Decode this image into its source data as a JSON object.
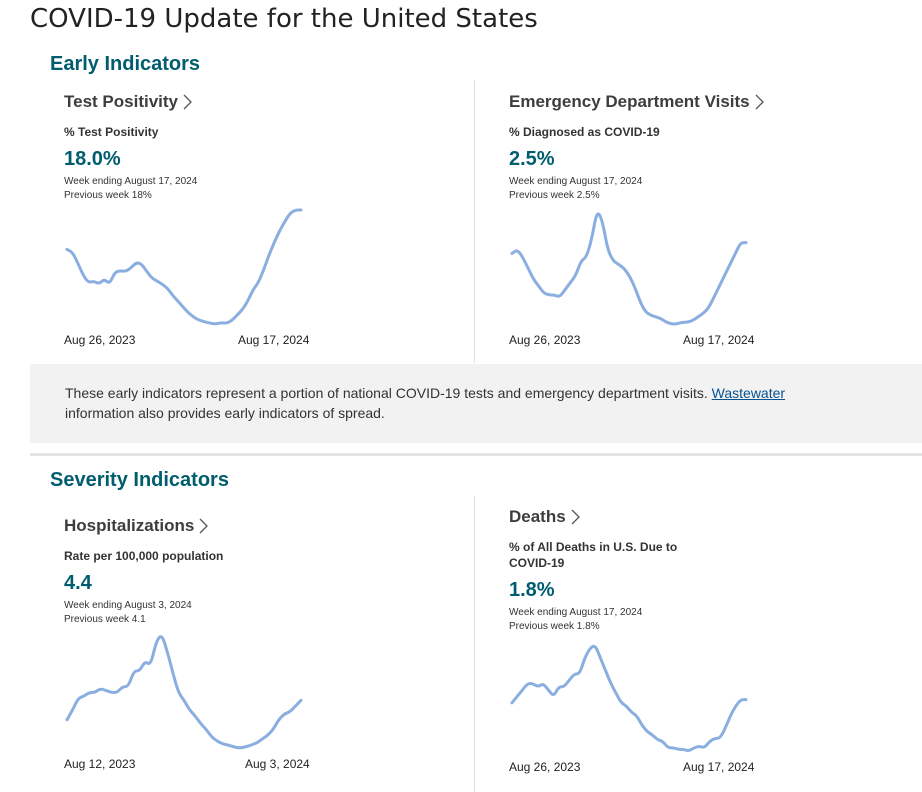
{
  "page": {
    "title": "COVID-19 Update for the United States"
  },
  "sections": {
    "early": {
      "title": "Early Indicators"
    },
    "severity": {
      "title": "Severity Indicators"
    }
  },
  "note": {
    "text_before": "These early indicators represent a portion of national COVID-19 tests and emergency department visits. ",
    "link_text": "Wastewater",
    "text_after": "information also provides early indicators of spread."
  },
  "cards": {
    "test_positivity": {
      "title": "Test Positivity",
      "metric_label": "% Test Positivity",
      "value": "18.0%",
      "week_ending": "Week ending August 17, 2024",
      "previous_week": "Previous week 18%"
    },
    "ed_visits": {
      "title": "Emergency Department Visits",
      "metric_label": "% Diagnosed as COVID-19",
      "value": "2.5%",
      "week_ending": "Week ending August 17, 2024",
      "previous_week": "Previous week 2.5%"
    },
    "hospitalizations": {
      "title": "Hospitalizations",
      "metric_label": "Rate per 100,000 population",
      "value": "4.4",
      "week_ending": "Week ending August 3, 2024",
      "previous_week": "Previous week 4.1"
    },
    "deaths": {
      "title": "Deaths",
      "metric_label": "% of All Deaths in U.S. Due to COVID-19",
      "value": "1.8%",
      "week_ending": "Week ending August 17, 2024",
      "previous_week": "Previous week 1.8%"
    }
  },
  "chart_data": [
    {
      "id": "test_positivity",
      "type": "line",
      "x_start": "Aug 26, 2023",
      "x_end": "Aug 17, 2024",
      "color": "#8aaee0",
      "series": [
        {
          "values": [
            12.3,
            11.9,
            10.4,
            8.6,
            7.5,
            7.7,
            7.3,
            8.0,
            7.3,
            9.0,
            9.2,
            9.1,
            9.6,
            10.4,
            10.2,
            9.1,
            8.1,
            7.7,
            7.2,
            6.6,
            5.5,
            4.7,
            3.8,
            3.0,
            2.4,
            2.0,
            1.8,
            1.6,
            1.5,
            1.7,
            1.6,
            2.0,
            2.8,
            3.6,
            4.8,
            6.5,
            7.5,
            9.4,
            11.5,
            13.4,
            15.0,
            16.4,
            17.6,
            18.0,
            18.0
          ]
        }
      ]
    },
    {
      "id": "ed_visits",
      "type": "line",
      "x_start": "Aug 26, 2023",
      "x_end": "Aug 17, 2024",
      "color": "#8aaee0",
      "series": [
        {
          "values": [
            2.2,
            2.3,
            2.1,
            1.8,
            1.5,
            1.3,
            1.1,
            1.05,
            1.05,
            1.0,
            1.2,
            1.4,
            1.6,
            2.0,
            2.1,
            2.6,
            3.4,
            3.1,
            2.3,
            2.0,
            1.9,
            1.8,
            1.6,
            1.3,
            0.9,
            0.6,
            0.5,
            0.45,
            0.4,
            0.3,
            0.25,
            0.25,
            0.3,
            0.3,
            0.35,
            0.45,
            0.55,
            0.7,
            1.0,
            1.3,
            1.6,
            1.9,
            2.2,
            2.5,
            2.5
          ]
        }
      ]
    },
    {
      "id": "hospitalizations",
      "type": "line",
      "x_start": "Aug 12, 2023",
      "x_end": "Aug 3, 2024",
      "color": "#8aaee0",
      "series": [
        {
          "values": [
            3.4,
            3.9,
            4.5,
            4.6,
            4.8,
            4.8,
            5.0,
            4.9,
            4.8,
            4.8,
            5.1,
            5.1,
            5.9,
            5.9,
            6.4,
            6.2,
            7.4,
            7.8,
            6.9,
            5.8,
            4.8,
            4.4,
            3.9,
            3.6,
            3.2,
            2.9,
            2.5,
            2.3,
            2.15,
            2.1,
            2.0,
            1.95,
            2.0,
            2.1,
            2.2,
            2.4,
            2.6,
            2.9,
            3.4,
            3.7,
            3.8,
            4.1,
            4.4
          ]
        }
      ]
    },
    {
      "id": "deaths",
      "type": "line",
      "x_start": "Aug 26, 2023",
      "x_end": "Aug 17, 2024",
      "color": "#8aaee0",
      "series": [
        {
          "values": [
            1.7,
            1.9,
            2.1,
            2.3,
            2.3,
            2.2,
            2.3,
            2.1,
            1.9,
            2.2,
            2.2,
            2.4,
            2.6,
            2.6,
            3.1,
            3.4,
            3.5,
            3.1,
            2.7,
            2.3,
            2.0,
            1.7,
            1.6,
            1.4,
            1.3,
            1.0,
            0.8,
            0.7,
            0.55,
            0.5,
            0.3,
            0.3,
            0.25,
            0.25,
            0.2,
            0.3,
            0.35,
            0.3,
            0.5,
            0.6,
            0.6,
            0.9,
            1.3,
            1.6,
            1.8,
            1.8
          ]
        }
      ]
    }
  ]
}
